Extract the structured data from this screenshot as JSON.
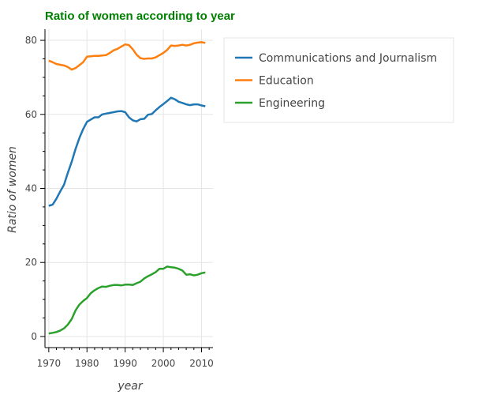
{
  "chart_data": {
    "type": "line",
    "title": "Ratio of women according to year",
    "title_color": "#008000",
    "xlabel": "year",
    "ylabel": "Ratio of women",
    "xlim": [
      1969,
      2013
    ],
    "ylim": [
      -3,
      83
    ],
    "x_ticks": [
      1970,
      1980,
      1990,
      2000,
      2010
    ],
    "y_ticks": [
      0,
      20,
      40,
      60,
      80
    ],
    "grid": true,
    "legend_position": "right",
    "x": [
      1970,
      1971,
      1972,
      1973,
      1974,
      1975,
      1976,
      1977,
      1978,
      1979,
      1980,
      1981,
      1982,
      1983,
      1984,
      1985,
      1986,
      1987,
      1988,
      1989,
      1990,
      1991,
      1992,
      1993,
      1994,
      1995,
      1996,
      1997,
      1998,
      1999,
      2000,
      2001,
      2002,
      2003,
      2004,
      2005,
      2006,
      2007,
      2008,
      2009,
      2010,
      2011
    ],
    "series": [
      {
        "name": "Communications and Journalism",
        "color": "#1f77b4",
        "values": [
          35.3,
          35.6,
          37.2,
          39.2,
          41.0,
          44.2,
          47.2,
          50.6,
          53.6,
          56.0,
          58.0,
          58.6,
          59.2,
          59.2,
          60.0,
          60.2,
          60.4,
          60.6,
          60.8,
          60.9,
          60.6,
          59.2,
          58.4,
          58.1,
          58.7,
          58.8,
          59.9,
          60.1,
          61.1,
          62.0,
          62.8,
          63.6,
          64.5,
          64.1,
          63.4,
          63.1,
          62.7,
          62.5,
          62.7,
          62.7,
          62.4,
          62.2
        ]
      },
      {
        "name": "Education",
        "color": "#ff7f0e",
        "values": [
          74.5,
          74.1,
          73.6,
          73.4,
          73.2,
          72.8,
          72.1,
          72.5,
          73.3,
          74.1,
          75.6,
          75.7,
          75.8,
          75.8,
          75.9,
          76.0,
          76.6,
          77.3,
          77.7,
          78.3,
          78.9,
          78.7,
          77.6,
          76.1,
          75.2,
          75.0,
          75.1,
          75.1,
          75.4,
          76.0,
          76.6,
          77.4,
          78.6,
          78.5,
          78.6,
          78.8,
          78.6,
          78.8,
          79.2,
          79.4,
          79.5,
          79.3
        ]
      },
      {
        "name": "Engineering",
        "color": "#2ca02c",
        "values": [
          0.8,
          1.0,
          1.2,
          1.6,
          2.2,
          3.2,
          4.7,
          7.0,
          8.6,
          9.6,
          10.4,
          11.7,
          12.5,
          13.1,
          13.5,
          13.4,
          13.7,
          13.9,
          13.9,
          13.8,
          14.0,
          14.0,
          13.9,
          14.4,
          14.8,
          15.7,
          16.3,
          16.8,
          17.4,
          18.3,
          18.3,
          18.9,
          18.7,
          18.6,
          18.3,
          17.8,
          16.7,
          16.8,
          16.5,
          16.7,
          17.1,
          17.3
        ]
      }
    ]
  }
}
